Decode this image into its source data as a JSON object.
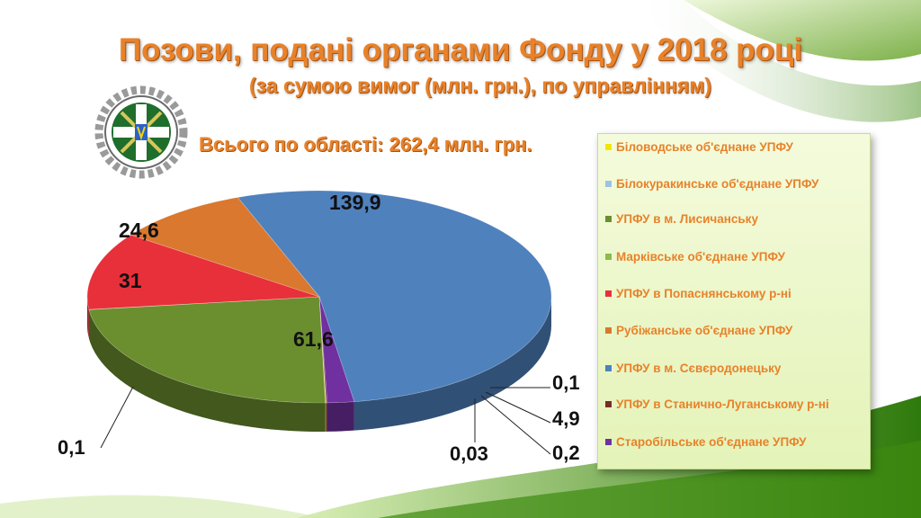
{
  "title": "Позови, подані органами Фонду у 2018 році",
  "subtitle": "(за сумою вимог (млн. грн.), по управлінням)",
  "total_label": "Всього по області: 262,4 млн. грн.",
  "colors": {
    "title": "#e8822a",
    "bilovodsk": "#f2e600",
    "bilokurakyne": "#9cc3e6",
    "lysychansk": "#6b8e2f",
    "markivka": "#8bbd4a",
    "popasna": "#e8303a",
    "rubizhne": "#d9782e",
    "sievierodonetsk": "#4f81bd",
    "stanychno": "#7b2a2a",
    "starobilsk": "#7030a0"
  },
  "chart_data": {
    "type": "pie",
    "title": "Позови, подані органами Фонду у 2018 році",
    "subtitle": "(за сумою вимог (млн. грн.), по управлінням)",
    "total": 262.4,
    "legend_position": "right",
    "slices": [
      {
        "name": "Біловодське об'єднане УПФУ",
        "value": 0.1,
        "label": "0,1",
        "color": "#f2e600"
      },
      {
        "name": "Білокуракинське об'єднане УПФУ",
        "value": 0.03,
        "label": "0,03",
        "color": "#9cc3e6"
      },
      {
        "name": "УПФУ в м. Лисичанську",
        "value": 61.6,
        "label": "61,6",
        "color": "#6b8e2f"
      },
      {
        "name": "Марківське об'єднане УПФУ",
        "value": 0.1,
        "label": "0,1",
        "color": "#8bbd4a"
      },
      {
        "name": "УПФУ в Попаснянському р-ні",
        "value": 31,
        "label": "31",
        "color": "#e8303a"
      },
      {
        "name": "Рубіжанське об'єднане УПФУ",
        "value": 24.6,
        "label": "24,6",
        "color": "#d9782e"
      },
      {
        "name": "УПФУ в м. Сєвєродонецьку",
        "value": 139.9,
        "label": "139,9",
        "color": "#4f81bd"
      },
      {
        "name": "УПФУ в Станично-Луганському р-ні",
        "value": 0.2,
        "label": "0,2",
        "color": "#7b2a2a"
      },
      {
        "name": "Старобільське об'єднане УПФУ",
        "value": 4.9,
        "label": "4,9",
        "color": "#7030a0"
      }
    ]
  }
}
